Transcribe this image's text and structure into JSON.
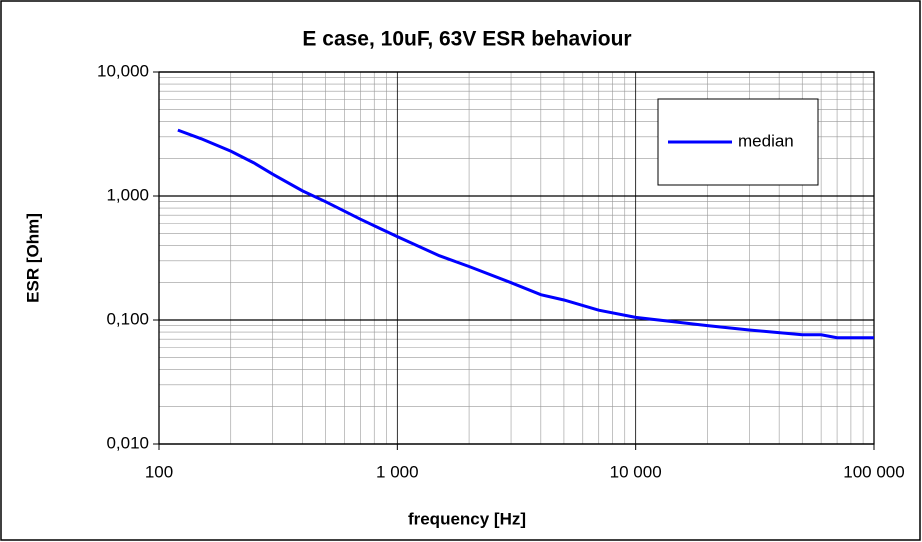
{
  "chart_data": {
    "type": "line",
    "title": "E case, 10uF, 63V ESR behaviour",
    "x_label": "frequency [Hz]",
    "y_label": "ESR [Ohm]",
    "xscale": "log",
    "yscale": "log",
    "grid": true,
    "legend": "upper right",
    "x": [
      120,
      150,
      200,
      250,
      300,
      400,
      500,
      700,
      1000,
      1500,
      2000,
      3000,
      4000,
      5000,
      7000,
      10000,
      20000,
      30000,
      50000,
      60000,
      70000,
      100000
    ],
    "series": [
      {
        "name": "median",
        "color": "#0000ff",
        "values": [
          3.4,
          2.9,
          2.3,
          1.85,
          1.5,
          1.1,
          0.9,
          0.65,
          0.47,
          0.33,
          0.27,
          0.2,
          0.16,
          0.145,
          0.12,
          0.105,
          0.09,
          0.083,
          0.076,
          0.076,
          0.072,
          0.072
        ]
      }
    ],
    "xlim": [
      100,
      100000
    ],
    "xticks": [
      100,
      {
        "value": 1000,
        "label": "1 000"
      },
      {
        "value": 10000,
        "label": "10 000"
      },
      {
        "value": 100000,
        "label": "100 000"
      }
    ],
    "ylim": [
      0.01,
      10
    ],
    "yticks": [
      {
        "value": 0.01,
        "label": "0,010"
      },
      {
        "value": 0.1,
        "label": "0,100"
      },
      {
        "value": 1,
        "label": "1,000"
      },
      {
        "value": 10,
        "label": "10,000"
      }
    ]
  }
}
